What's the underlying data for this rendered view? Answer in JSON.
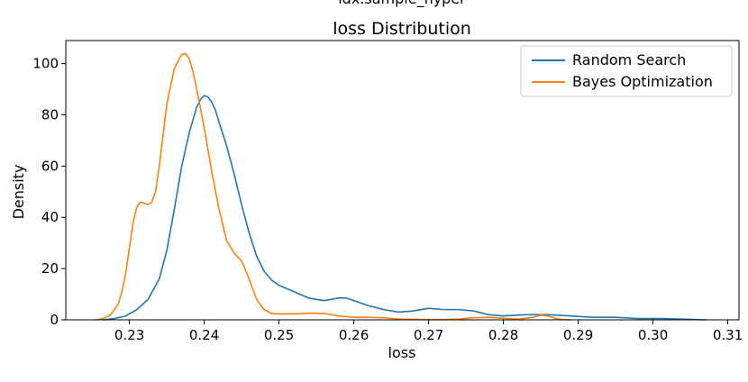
{
  "figure": {
    "suptitle": "idx.sample_hyper"
  },
  "chart_data": {
    "type": "line",
    "title": "loss Distribution",
    "xlabel": "loss",
    "ylabel": "Density",
    "xlim": [
      0.2215,
      0.3115
    ],
    "ylim": [
      0,
      109
    ],
    "xticks": [
      0.23,
      0.24,
      0.25,
      0.26,
      0.27,
      0.28,
      0.29,
      0.3,
      0.31
    ],
    "xtick_labels": [
      "0.23",
      "0.24",
      "0.25",
      "0.26",
      "0.27",
      "0.28",
      "0.29",
      "0.30",
      "0.31"
    ],
    "yticks": [
      0,
      20,
      40,
      60,
      80,
      100
    ],
    "ytick_labels": [
      "0",
      "20",
      "40",
      "60",
      "80",
      "100"
    ],
    "grid": false,
    "legend_position": "top-right",
    "series": [
      {
        "name": "Random Search",
        "color": "#1f77b4",
        "x": [
          0.2265,
          0.228,
          0.2295,
          0.231,
          0.2325,
          0.234,
          0.235,
          0.236,
          0.237,
          0.238,
          0.239,
          0.2395,
          0.24,
          0.2405,
          0.241,
          0.2415,
          0.242,
          0.243,
          0.244,
          0.245,
          0.246,
          0.247,
          0.248,
          0.249,
          0.25,
          0.252,
          0.254,
          0.256,
          0.258,
          0.259,
          0.26,
          0.262,
          0.264,
          0.266,
          0.268,
          0.27,
          0.272,
          0.274,
          0.276,
          0.278,
          0.28,
          0.283,
          0.286,
          0.289,
          0.292,
          0.295,
          0.298,
          0.301,
          0.304,
          0.307
        ],
        "y": [
          0,
          0.5,
          1.5,
          4,
          8,
          16,
          27,
          43,
          60,
          73,
          83,
          86,
          87.5,
          87,
          85,
          82,
          77,
          68,
          57,
          45,
          34,
          25,
          19,
          15.5,
          13.5,
          11,
          8.5,
          7.5,
          8.5,
          8.5,
          7.5,
          5.5,
          4,
          3,
          3.5,
          4.5,
          4,
          4,
          3.5,
          2,
          1.5,
          2,
          2,
          1.5,
          1,
          1,
          0.5,
          0.5,
          0.3,
          0
        ]
      },
      {
        "name": "Bayes Optimization",
        "color": "#ff7f0e",
        "x": [
          0.2255,
          0.2265,
          0.2275,
          0.2285,
          0.229,
          0.2295,
          0.23,
          0.2305,
          0.231,
          0.2315,
          0.232,
          0.2325,
          0.233,
          0.2335,
          0.234,
          0.2345,
          0.235,
          0.236,
          0.237,
          0.2375,
          0.238,
          0.2385,
          0.239,
          0.24,
          0.241,
          0.242,
          0.243,
          0.244,
          0.245,
          0.246,
          0.247,
          0.248,
          0.249,
          0.25,
          0.252,
          0.254,
          0.256,
          0.258,
          0.26,
          0.262,
          0.264,
          0.266,
          0.268,
          0.27,
          0.272,
          0.274,
          0.276,
          0.278,
          0.28,
          0.282,
          0.284,
          0.285,
          0.286,
          0.287,
          0.288,
          0.289
        ],
        "y": [
          0,
          0.5,
          2,
          6,
          11,
          18,
          28,
          38,
          44,
          46,
          45.5,
          45,
          46,
          50,
          60,
          72,
          84,
          98,
          103.5,
          104,
          102,
          97,
          90,
          75,
          58,
          43,
          31,
          26,
          23,
          16,
          8,
          4,
          2.5,
          2.3,
          2.3,
          2.6,
          2.5,
          1.5,
          1,
          1,
          0.8,
          0.3,
          0.2,
          0.1,
          0.1,
          0.3,
          0.8,
          1,
          0.6,
          0.3,
          1,
          1.8,
          1.5,
          0.5,
          0.1,
          0
        ]
      }
    ]
  }
}
